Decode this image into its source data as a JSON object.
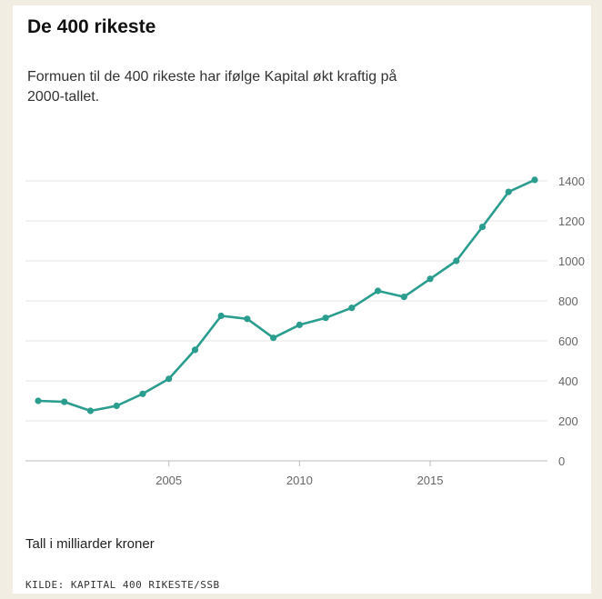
{
  "title": "De 400 rikeste",
  "subtitle": "Formuen til de 400 rikeste har ifølge Kapital økt kraftig på 2000-tallet.",
  "unit_note": "Tall i milliarder kroner",
  "source": "KILDE: KAPITAL 400 RIKESTE/SSB",
  "colors": {
    "line": "#2a9d8f",
    "grid": "#e6e6e6",
    "tick": "#666666"
  },
  "chart_data": {
    "type": "line",
    "x": [
      2000,
      2001,
      2002,
      2003,
      2004,
      2005,
      2006,
      2007,
      2008,
      2009,
      2010,
      2011,
      2012,
      2013,
      2014,
      2015,
      2016,
      2017,
      2018,
      2019
    ],
    "values": [
      300,
      295,
      250,
      275,
      335,
      410,
      555,
      725,
      710,
      615,
      680,
      715,
      765,
      850,
      820,
      910,
      1000,
      1170,
      1345,
      1405
    ],
    "xticks": [
      2005,
      2010,
      2015
    ],
    "yticks": [
      0,
      200,
      400,
      600,
      800,
      1000,
      1200,
      1400
    ],
    "ylim": [
      0,
      1400
    ],
    "xlim": [
      2000,
      2019
    ],
    "y_axis_side": "right",
    "grid": true
  }
}
